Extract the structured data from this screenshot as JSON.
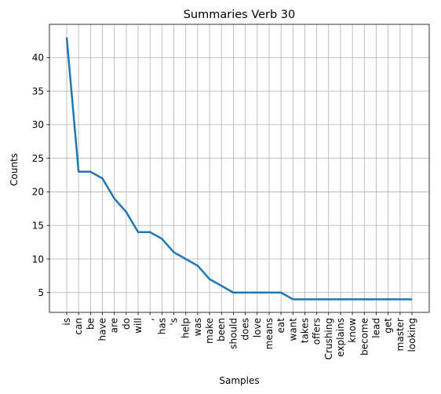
{
  "chart_data": {
    "type": "line",
    "title": "Summaries Verb 30",
    "xlabel": "Samples",
    "ylabel": "Counts",
    "categories": [
      "is",
      "can",
      "be",
      "have",
      "are",
      "do",
      "will",
      ",",
      "has",
      "'s",
      "help",
      "was",
      "make",
      "been",
      "should",
      "does",
      "love",
      "means",
      "eat",
      "want",
      "takes",
      "offers",
      "Crushing",
      "explains",
      "know",
      "become",
      "lead",
      "get",
      "master",
      "looking"
    ],
    "series": [
      {
        "values": [
          43,
          23,
          23,
          22,
          19,
          17,
          14,
          14,
          13,
          11,
          10,
          9,
          7,
          6,
          5,
          5,
          5,
          5,
          5,
          4,
          4,
          4,
          4,
          4,
          4,
          4,
          4,
          4,
          4,
          4
        ]
      }
    ],
    "yticks": [
      5,
      10,
      15,
      20,
      25,
      30,
      35,
      40
    ],
    "ylim": [
      2.05,
      44.95
    ],
    "grid": true,
    "line_color": "#1f77b4"
  }
}
